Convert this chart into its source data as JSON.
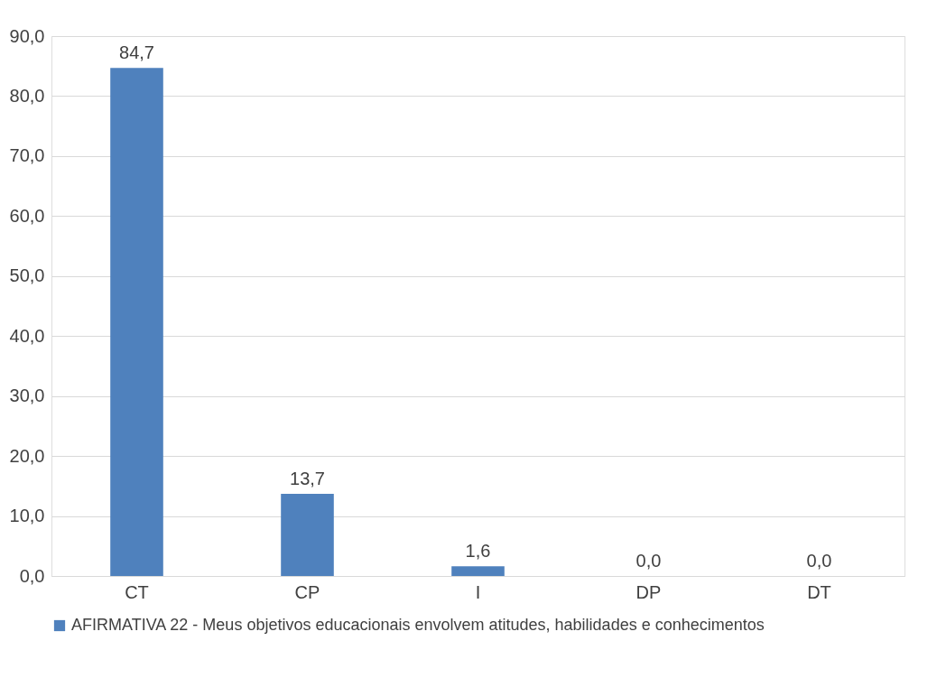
{
  "chart_data": {
    "type": "bar",
    "categories": [
      "CT",
      "CP",
      "I",
      "DP",
      "DT"
    ],
    "series": [
      {
        "name": "AFIRMATIVA 22 - Meus objetivos educacionais envolvem atitudes, habilidades e conhecimentos",
        "color": "#4f81bd",
        "values": [
          84.7,
          13.7,
          1.6,
          0.0,
          0.0
        ],
        "value_labels": [
          "84,7",
          "13,7",
          "1,6",
          "0,0",
          "0,0"
        ]
      }
    ],
    "ylim": [
      0,
      90
    ],
    "yticks": [
      {
        "value": 0,
        "label": "0,0"
      },
      {
        "value": 10,
        "label": "10,0"
      },
      {
        "value": 20,
        "label": "20,0"
      },
      {
        "value": 30,
        "label": "30,0"
      },
      {
        "value": 40,
        "label": "40,0"
      },
      {
        "value": 50,
        "label": "50,0"
      },
      {
        "value": 60,
        "label": "60,0"
      },
      {
        "value": 70,
        "label": "70,0"
      },
      {
        "value": 80,
        "label": "80,0"
      },
      {
        "value": 90,
        "label": "90,0"
      }
    ],
    "grid": "y",
    "legend": "bottom"
  }
}
